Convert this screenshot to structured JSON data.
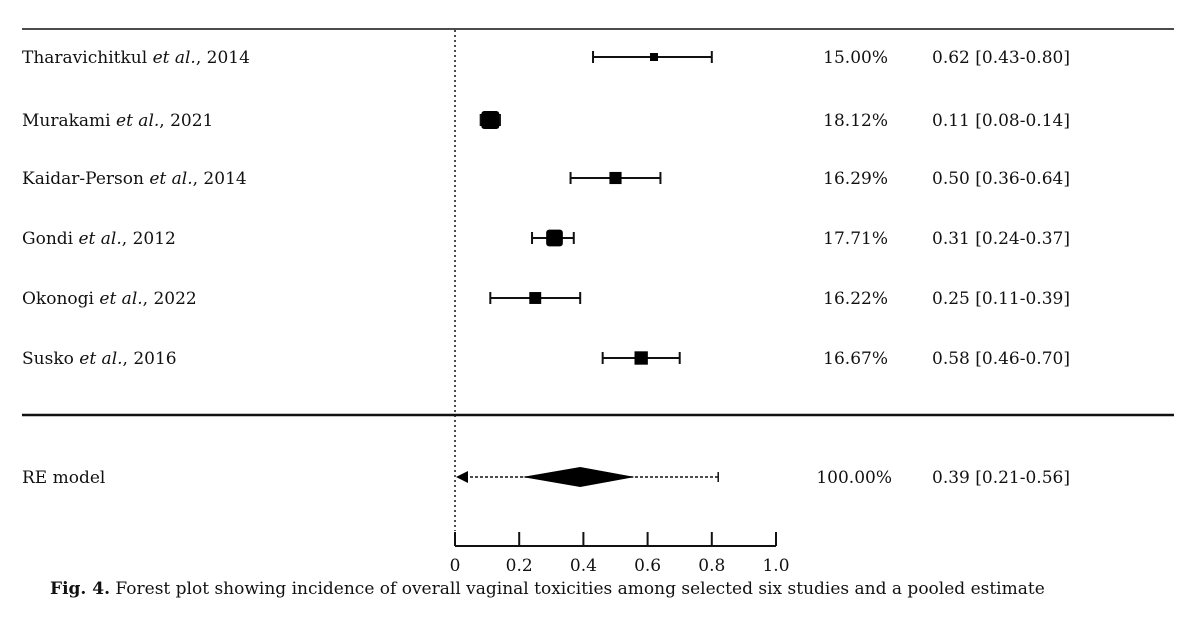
{
  "chart_data": {
    "type": "forest",
    "xlim": [
      0,
      1.0
    ],
    "x_ticks": [
      "0",
      "0.2",
      "0.4",
      "0.6",
      "0.8",
      "1.0"
    ],
    "x_tick_values": [
      0,
      0.2,
      0.4,
      0.6,
      0.8,
      1.0
    ],
    "studies": [
      {
        "author": "Tharavichitkul",
        "etal": "et al.",
        "year": ", 2014",
        "estimate": 0.62,
        "lower": 0.43,
        "upper": 0.8,
        "weight_label": "15.00%",
        "weight": 15.0,
        "ci_label": "0.62 [0.43-0.80]"
      },
      {
        "author": "Murakami",
        "etal": "et al.",
        "year": ", 2021",
        "estimate": 0.11,
        "lower": 0.08,
        "upper": 0.14,
        "weight_label": "18.12%",
        "weight": 18.12,
        "ci_label": "0.11 [0.08-0.14]"
      },
      {
        "author": "Kaidar-Person",
        "etal": "et al.",
        "year": ", 2014",
        "estimate": 0.5,
        "lower": 0.36,
        "upper": 0.64,
        "weight_label": "16.29%",
        "weight": 16.29,
        "ci_label": "0.50 [0.36-0.64]"
      },
      {
        "author": "Gondi",
        "etal": "et al.",
        "year": ", 2012",
        "estimate": 0.31,
        "lower": 0.24,
        "upper": 0.37,
        "weight_label": "17.71%",
        "weight": 17.71,
        "ci_label": "0.31 [0.24-0.37]"
      },
      {
        "author": "Okonogi",
        "etal": "et al.",
        "year": ", 2022",
        "estimate": 0.25,
        "lower": 0.11,
        "upper": 0.39,
        "weight_label": "16.22%",
        "weight": 16.22,
        "ci_label": "0.25 [0.11-0.39]"
      },
      {
        "author": "Susko",
        "etal": "et al.",
        "year": ", 2016",
        "estimate": 0.58,
        "lower": 0.46,
        "upper": 0.7,
        "weight_label": "16.67%",
        "weight": 16.67,
        "ci_label": "0.58 [0.46-0.70]"
      }
    ],
    "pooled": {
      "label": "RE model",
      "estimate": 0.39,
      "lower": 0.21,
      "upper": 0.56,
      "pi_lower": 0.0,
      "pi_upper": 0.82,
      "weight_label": "100.00%",
      "ci_label": "0.39 [0.21-0.56]"
    }
  },
  "caption": {
    "prefix": "Fig. 4.",
    "text": " Forest plot showing incidence of overall vaginal toxicities among selected six studies and a pooled estimate"
  }
}
